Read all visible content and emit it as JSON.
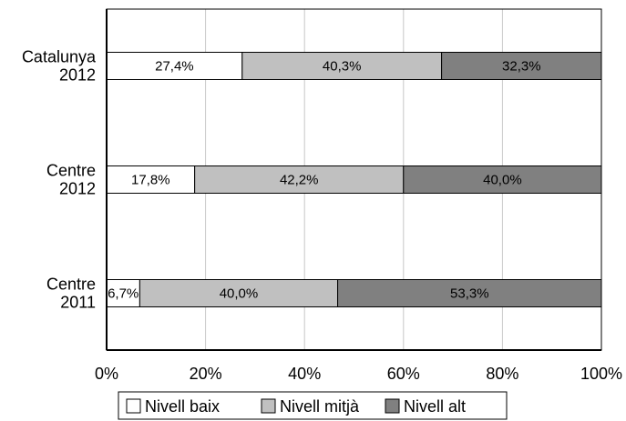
{
  "chart_data": {
    "type": "bar",
    "orientation": "horizontal",
    "stacked": true,
    "title": "",
    "xlabel": "",
    "ylabel": "",
    "xlim": [
      0,
      100
    ],
    "grid": true,
    "legend_position": "bottom",
    "x_ticks": [
      "0%",
      "20%",
      "40%",
      "60%",
      "80%",
      "100%"
    ],
    "categories": [
      {
        "line1": "Catalunya",
        "line2": "2012"
      },
      {
        "line1": "Centre",
        "line2": "2012"
      },
      {
        "line1": "Centre",
        "line2": "2011"
      }
    ],
    "series": [
      {
        "name": "Nivell baix",
        "color": "#ffffff",
        "values": [
          27.4,
          17.8,
          6.7
        ],
        "labels": [
          "27,4%",
          "17,8%",
          "6,7%"
        ]
      },
      {
        "name": "Nivell mitjà",
        "color": "#c0c0c0",
        "values": [
          40.3,
          42.2,
          40.0
        ],
        "labels": [
          "40,3%",
          "42,2%",
          "40,0%"
        ]
      },
      {
        "name": "Nivell alt",
        "color": "#808080",
        "values": [
          32.3,
          40.0,
          53.3
        ],
        "labels": [
          "32,3%",
          "40,0%",
          "53,3%"
        ]
      }
    ]
  }
}
